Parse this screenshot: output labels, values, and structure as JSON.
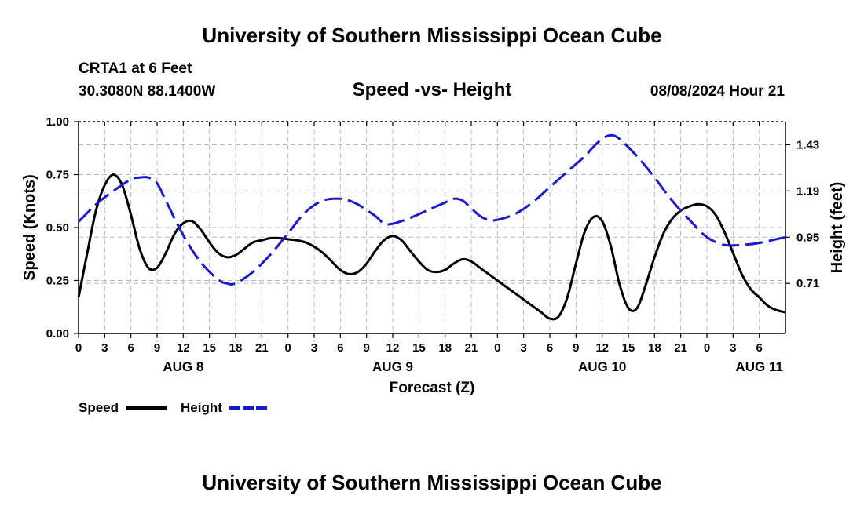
{
  "header": {
    "title": "University of Southern Mississippi Ocean Cube",
    "station": "CRTA1 at 6 Feet",
    "coords": "30.3080N  88.1400W",
    "date": "08/08/2024 Hour 21",
    "footer_title": "University of Southern Mississippi Ocean Cube"
  },
  "colors": {
    "speed": "#000000",
    "height": "#1a1ac8",
    "grid": "#b8b8b8"
  },
  "chart_data": {
    "type": "line",
    "title": "Speed -vs- Height",
    "xlabel": "Forecast (Z)",
    "ylabel": "Speed (Knots)",
    "y2label": "Height (feet)",
    "x_range_hours": [
      0,
      81
    ],
    "x_tick_step_hours": 3,
    "x_tick_labels": [
      "0",
      "3",
      "6",
      "9",
      "12",
      "15",
      "18",
      "21",
      "0",
      "3",
      "6",
      "9",
      "12",
      "15",
      "18",
      "21",
      "0",
      "3",
      "6",
      "9",
      "12",
      "15",
      "18",
      "21",
      "0",
      "3",
      "6"
    ],
    "date_labels": [
      {
        "label": "AUG 8",
        "hour": 12
      },
      {
        "label": "AUG 9",
        "hour": 36
      },
      {
        "label": "AUG 10",
        "hour": 60
      },
      {
        "label": "AUG 11",
        "hour": 78
      }
    ],
    "ylim": [
      0,
      1.0
    ],
    "y_ticks": [
      0,
      0.25,
      0.5,
      0.75,
      1.0
    ],
    "y_tick_labels": [
      "0.00",
      "0.25",
      "0.50",
      "0.75",
      "1.00"
    ],
    "y2lim": [
      0.45,
      1.55
    ],
    "y2_ticks": [
      0.71,
      0.95,
      1.19,
      1.43
    ],
    "y2_tick_labels": [
      "0.71",
      "0.95",
      "1.19",
      "1.43"
    ],
    "legend": [
      {
        "name": "Speed",
        "style": "solid"
      },
      {
        "name": "Height",
        "style": "dashed"
      }
    ],
    "series": [
      {
        "name": "Speed",
        "axis": "left",
        "style": "solid",
        "points": [
          [
            0,
            0.17
          ],
          [
            1,
            0.38
          ],
          [
            2,
            0.58
          ],
          [
            3,
            0.7
          ],
          [
            4,
            0.75
          ],
          [
            5,
            0.7
          ],
          [
            6,
            0.56
          ],
          [
            7,
            0.4
          ],
          [
            8,
            0.31
          ],
          [
            9,
            0.31
          ],
          [
            10,
            0.38
          ],
          [
            11,
            0.47
          ],
          [
            12,
            0.52
          ],
          [
            13,
            0.53
          ],
          [
            14,
            0.49
          ],
          [
            15,
            0.43
          ],
          [
            16,
            0.38
          ],
          [
            17,
            0.36
          ],
          [
            18,
            0.37
          ],
          [
            19,
            0.4
          ],
          [
            20,
            0.43
          ],
          [
            21,
            0.44
          ],
          [
            22,
            0.45
          ],
          [
            23,
            0.45
          ],
          [
            24,
            0.445
          ],
          [
            25,
            0.44
          ],
          [
            26,
            0.43
          ],
          [
            27,
            0.41
          ],
          [
            28,
            0.38
          ],
          [
            29,
            0.34
          ],
          [
            30,
            0.3
          ],
          [
            31,
            0.28
          ],
          [
            32,
            0.29
          ],
          [
            33,
            0.33
          ],
          [
            34,
            0.39
          ],
          [
            35,
            0.44
          ],
          [
            36,
            0.46
          ],
          [
            37,
            0.44
          ],
          [
            38,
            0.39
          ],
          [
            39,
            0.34
          ],
          [
            40,
            0.3
          ],
          [
            41,
            0.29
          ],
          [
            42,
            0.3
          ],
          [
            43,
            0.33
          ],
          [
            44,
            0.35
          ],
          [
            45,
            0.34
          ],
          [
            46,
            0.31
          ],
          [
            47,
            0.28
          ],
          [
            48,
            0.25
          ],
          [
            49,
            0.22
          ],
          [
            50,
            0.19
          ],
          [
            51,
            0.16
          ],
          [
            52,
            0.13
          ],
          [
            53,
            0.1
          ],
          [
            54,
            0.07
          ],
          [
            55,
            0.08
          ],
          [
            56,
            0.17
          ],
          [
            57,
            0.33
          ],
          [
            58,
            0.48
          ],
          [
            59,
            0.55
          ],
          [
            60,
            0.53
          ],
          [
            61,
            0.41
          ],
          [
            62,
            0.23
          ],
          [
            63,
            0.12
          ],
          [
            64,
            0.12
          ],
          [
            65,
            0.23
          ],
          [
            66,
            0.36
          ],
          [
            67,
            0.47
          ],
          [
            68,
            0.54
          ],
          [
            69,
            0.58
          ],
          [
            70,
            0.6
          ],
          [
            71,
            0.61
          ],
          [
            72,
            0.6
          ],
          [
            73,
            0.56
          ],
          [
            74,
            0.48
          ],
          [
            75,
            0.38
          ],
          [
            76,
            0.28
          ],
          [
            77,
            0.21
          ],
          [
            78,
            0.17
          ],
          [
            79,
            0.13
          ],
          [
            80,
            0.11
          ],
          [
            81,
            0.1
          ]
        ]
      },
      {
        "name": "Height",
        "axis": "right",
        "style": "dashed",
        "points": [
          [
            0,
            1.03
          ],
          [
            2,
            1.12
          ],
          [
            4,
            1.19
          ],
          [
            6,
            1.25
          ],
          [
            7,
            1.26
          ],
          [
            8,
            1.26
          ],
          [
            9,
            1.23
          ],
          [
            10,
            1.14
          ],
          [
            12,
            0.96
          ],
          [
            14,
            0.82
          ],
          [
            16,
            0.73
          ],
          [
            17,
            0.71
          ],
          [
            18,
            0.71
          ],
          [
            20,
            0.77
          ],
          [
            22,
            0.86
          ],
          [
            24,
            0.97
          ],
          [
            26,
            1.08
          ],
          [
            28,
            1.14
          ],
          [
            30,
            1.15
          ],
          [
            31,
            1.14
          ],
          [
            32,
            1.12
          ],
          [
            34,
            1.06
          ],
          [
            35,
            1.02
          ],
          [
            36,
            1.02
          ],
          [
            38,
            1.05
          ],
          [
            40,
            1.09
          ],
          [
            42,
            1.13
          ],
          [
            43,
            1.15
          ],
          [
            44,
            1.14
          ],
          [
            45,
            1.1
          ],
          [
            46,
            1.06
          ],
          [
            47,
            1.04
          ],
          [
            48,
            1.04
          ],
          [
            50,
            1.07
          ],
          [
            52,
            1.13
          ],
          [
            54,
            1.21
          ],
          [
            56,
            1.29
          ],
          [
            58,
            1.37
          ],
          [
            59,
            1.42
          ],
          [
            60,
            1.46
          ],
          [
            61,
            1.48
          ],
          [
            62,
            1.46
          ],
          [
            64,
            1.37
          ],
          [
            66,
            1.26
          ],
          [
            68,
            1.14
          ],
          [
            70,
            1.04
          ],
          [
            72,
            0.95
          ],
          [
            74,
            0.91
          ],
          [
            76,
            0.91
          ],
          [
            78,
            0.92
          ],
          [
            80,
            0.94
          ],
          [
            81,
            0.95
          ]
        ]
      }
    ]
  }
}
